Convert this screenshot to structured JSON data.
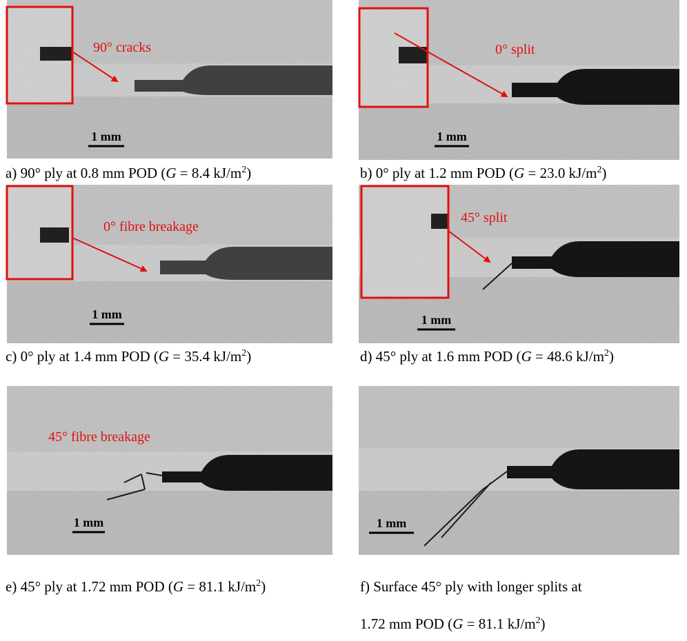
{
  "panels": [
    {
      "annotation": "90° cracks",
      "scale_bar": "1 mm",
      "caption": {
        "prefix": "a) 90° ply at 0.8 mm POD (",
        "variable": "G",
        "middle": " = 8.4 kJ/m",
        "sup": "2",
        "suffix": ")"
      }
    },
    {
      "annotation": "0° split",
      "scale_bar": "1 mm",
      "caption": {
        "prefix": "b) 0° ply at 1.2 mm POD (",
        "variable": "G",
        "middle": " = 23.0 kJ/m",
        "sup": "2",
        "suffix": ")"
      }
    },
    {
      "annotation": "0° fibre breakage",
      "scale_bar": "1 mm",
      "caption": {
        "prefix": "c) 0° ply at 1.4 mm POD (",
        "variable": "G",
        "middle": " = 35.4 kJ/m",
        "sup": "2",
        "suffix": ")"
      }
    },
    {
      "annotation": "45° split",
      "scale_bar": "1 mm",
      "caption": {
        "prefix": "d) 45° ply at 1.6 mm POD (",
        "variable": "G",
        "middle": " = 48.6 kJ/m",
        "sup": "2",
        "suffix": ")"
      }
    },
    {
      "annotation": "45° fibre breakage",
      "scale_bar": "1 mm",
      "caption": {
        "prefix": "e) 45° ply at 1.72 mm POD (",
        "variable": "G",
        "middle": " = 81.1 kJ/m",
        "sup": "2",
        "suffix": ")"
      }
    },
    {
      "scale_bar": "1 mm",
      "caption": {
        "lead": "f) Surface 45° ply with longer splits at",
        "prefix": "1.72 mm POD (",
        "variable": "G",
        "middle": " = 81.1 kJ/m",
        "sup": "2",
        "suffix": ")"
      }
    }
  ]
}
